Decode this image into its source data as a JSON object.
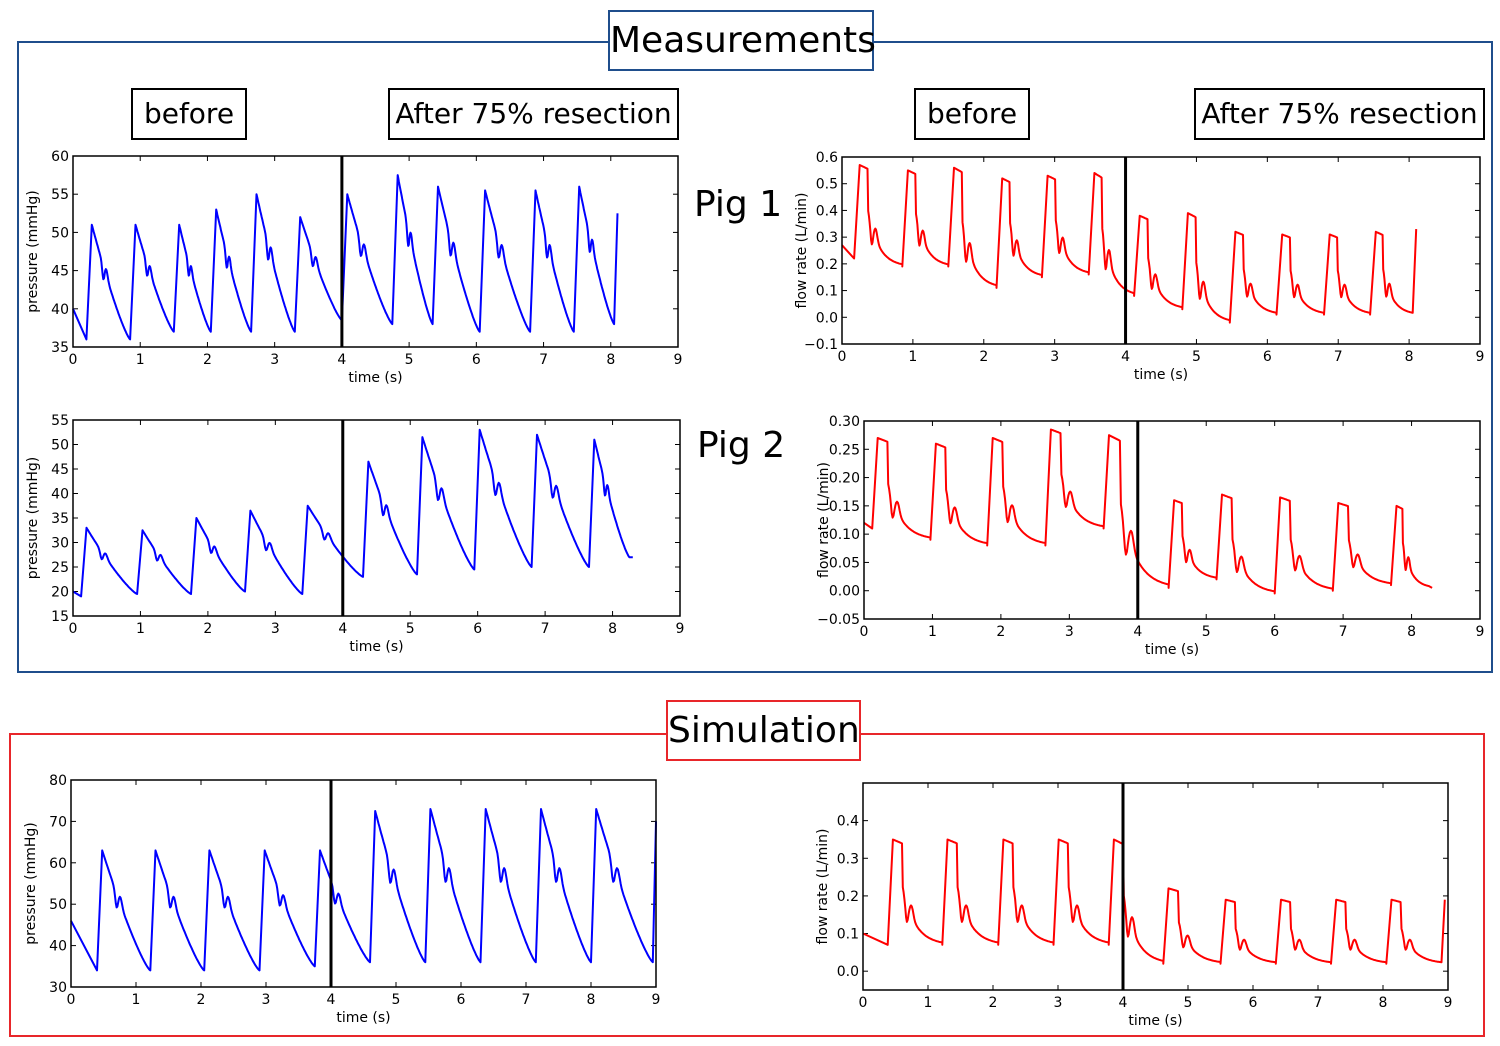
{
  "measurements": {
    "title": "Measurements",
    "color": "#1f4e8c"
  },
  "simulation": {
    "title": "Simulation",
    "color": "#e8262a"
  },
  "labels": {
    "before": "before",
    "after": "After 75% resection",
    "pig1": "Pig 1",
    "pig2": "Pig 2"
  },
  "chart_data": [
    {
      "id": "pig1-pressure",
      "type": "line",
      "xlabel": "time (s)",
      "ylabel": "pressure (mmHg)",
      "xlim": [
        0,
        9
      ],
      "ylim": [
        35,
        60
      ],
      "xticks": [
        0,
        1,
        2,
        3,
        4,
        5,
        6,
        7,
        8,
        9
      ],
      "yticks": [
        35,
        40,
        45,
        50,
        55,
        60
      ],
      "tick_labels_y": [
        "35",
        "40",
        "45",
        "50",
        "55",
        "60"
      ],
      "color": "#0000ff",
      "divider_x": 4,
      "start": [
        0,
        40
      ],
      "beats": [
        [
          0.2,
          36,
          51
        ],
        [
          0.85,
          36,
          51
        ],
        [
          1.5,
          37,
          51
        ],
        [
          2.05,
          37,
          53
        ],
        [
          2.65,
          37,
          55
        ],
        [
          3.3,
          37,
          52
        ],
        [
          4.0,
          38.5,
          55
        ],
        [
          4.75,
          38,
          57.5
        ],
        [
          5.35,
          38,
          56
        ],
        [
          6.05,
          37,
          55.5
        ],
        [
          6.8,
          37,
          55.5
        ],
        [
          7.45,
          37,
          56
        ]
      ],
      "end": [
        8.1,
        38,
        52.5
      ]
    },
    {
      "id": "pig1-flow",
      "type": "line",
      "xlabel": "time (s)",
      "ylabel": "flow rate (L/min)",
      "xlim": [
        0,
        9
      ],
      "ylim": [
        -0.1,
        0.6
      ],
      "xticks": [
        0,
        1,
        2,
        3,
        4,
        5,
        6,
        7,
        8,
        9
      ],
      "yticks": [
        -0.1,
        0,
        0.1,
        0.2,
        0.3,
        0.4,
        0.5,
        0.6
      ],
      "tick_labels_y": [
        "−0.1",
        "0.0",
        "0.1",
        "0.2",
        "0.3",
        "0.4",
        "0.5",
        "0.6"
      ],
      "color": "#ff0000",
      "divider_x": 4,
      "start": [
        0,
        0.27
      ],
      "beats": [
        [
          0.17,
          0.22,
          0.57
        ],
        [
          0.85,
          0.19,
          0.55
        ],
        [
          1.5,
          0.19,
          0.56
        ],
        [
          2.18,
          0.11,
          0.52
        ],
        [
          2.82,
          0.15,
          0.53
        ],
        [
          3.48,
          0.16,
          0.54
        ],
        [
          4.12,
          0.08,
          0.38
        ],
        [
          4.8,
          0.03,
          0.39
        ],
        [
          5.47,
          -0.02,
          0.32
        ],
        [
          6.13,
          0.01,
          0.31
        ],
        [
          6.8,
          0.01,
          0.31
        ],
        [
          7.45,
          0.01,
          0.32
        ]
      ],
      "end": [
        8.1,
        0.01,
        0.33
      ]
    },
    {
      "id": "pig2-pressure",
      "type": "line",
      "xlabel": "time (s)",
      "ylabel": "pressure (mmHg)",
      "xlim": [
        0,
        9
      ],
      "ylim": [
        15,
        55
      ],
      "xticks": [
        0,
        1,
        2,
        3,
        4,
        5,
        6,
        7,
        8,
        9
      ],
      "yticks": [
        15,
        20,
        25,
        30,
        35,
        40,
        45,
        50,
        55
      ],
      "tick_labels_y": [
        "15",
        "20",
        "25",
        "30",
        "35",
        "40",
        "45",
        "50",
        "55"
      ],
      "color": "#0000ff",
      "divider_x": 4,
      "start": [
        0,
        20
      ],
      "beats": [
        [
          0.12,
          19,
          33
        ],
        [
          0.95,
          19.5,
          32.5
        ],
        [
          1.75,
          19.5,
          35
        ],
        [
          2.55,
          20,
          36.5
        ],
        [
          3.4,
          19.5,
          37.5
        ],
        [
          4.3,
          23,
          46.5
        ],
        [
          5.1,
          23.5,
          51.5
        ],
        [
          5.95,
          24.5,
          53
        ],
        [
          6.8,
          25,
          52
        ],
        [
          7.65,
          25,
          51
        ]
      ],
      "end": [
        8.3,
        27,
        27
      ]
    },
    {
      "id": "pig2-flow",
      "type": "line",
      "xlabel": "time (s)",
      "ylabel": "flow rate (L/min)",
      "xlim": [
        0,
        9
      ],
      "ylim": [
        -0.05,
        0.3
      ],
      "xticks": [
        0,
        1,
        2,
        3,
        4,
        5,
        6,
        7,
        8,
        9
      ],
      "yticks": [
        -0.05,
        0,
        0.05,
        0.1,
        0.15,
        0.2,
        0.25,
        0.3
      ],
      "tick_labels_y": [
        "−0.05",
        "0.00",
        "0.05",
        "0.10",
        "0.15",
        "0.20",
        "0.25",
        "0.30"
      ],
      "color": "#ff0000",
      "divider_x": 4,
      "start": [
        0,
        0.12
      ],
      "beats": [
        [
          0.12,
          0.11,
          0.27
        ],
        [
          0.97,
          0.09,
          0.26
        ],
        [
          1.8,
          0.08,
          0.27
        ],
        [
          2.65,
          0.08,
          0.285
        ],
        [
          3.5,
          0.11,
          0.275
        ],
        [
          4.45,
          0.005,
          0.16
        ],
        [
          5.15,
          0.02,
          0.17
        ],
        [
          6.0,
          -0.005,
          0.165
        ],
        [
          6.85,
          0.0,
          0.155
        ],
        [
          7.7,
          0.01,
          0.15
        ]
      ],
      "end": [
        8.3,
        0.005,
        0.005
      ]
    },
    {
      "id": "sim-pressure",
      "type": "line",
      "xlabel": "time (s)",
      "ylabel": "pressure (mmHg)",
      "xlim": [
        0,
        9
      ],
      "ylim": [
        30,
        80
      ],
      "xticks": [
        0,
        1,
        2,
        3,
        4,
        5,
        6,
        7,
        8,
        9
      ],
      "yticks": [
        30,
        40,
        50,
        60,
        70,
        80
      ],
      "tick_labels_y": [
        "30",
        "40",
        "50",
        "60",
        "70",
        "80"
      ],
      "color": "#0000ff",
      "divider_x": 4,
      "start": [
        0,
        46
      ],
      "beats": [
        [
          0.4,
          34,
          63
        ],
        [
          1.22,
          34,
          63
        ],
        [
          2.05,
          34,
          63
        ],
        [
          2.9,
          34,
          63
        ],
        [
          3.75,
          35,
          63
        ],
        [
          4.6,
          36,
          72.5
        ],
        [
          5.45,
          36,
          73
        ],
        [
          6.3,
          36,
          73
        ],
        [
          7.15,
          36,
          73
        ],
        [
          8.0,
          36,
          73
        ]
      ],
      "end": [
        9.0,
        36,
        70
      ]
    },
    {
      "id": "sim-flow",
      "type": "line",
      "xlabel": "time (s)",
      "ylabel": "flow rate (L/min)",
      "xlim": [
        0,
        9
      ],
      "ylim": [
        -0.05,
        0.5
      ],
      "xticks": [
        0,
        1,
        2,
        3,
        4,
        5,
        6,
        7,
        8,
        9
      ],
      "yticks": [
        0,
        0.1,
        0.2,
        0.3,
        0.4
      ],
      "tick_labels_y": [
        "0.0",
        "0.1",
        "0.2",
        "0.3",
        "0.4"
      ],
      "color": "#ff0000",
      "divider_x": 4,
      "start": [
        0,
        0.1
      ],
      "beats": [
        [
          0.38,
          0.07,
          0.35
        ],
        [
          1.22,
          0.07,
          0.35
        ],
        [
          2.08,
          0.07,
          0.35
        ],
        [
          2.93,
          0.07,
          0.35
        ],
        [
          3.78,
          0.07,
          0.35
        ],
        [
          4.62,
          0.02,
          0.22
        ],
        [
          5.5,
          0.02,
          0.19
        ],
        [
          6.35,
          0.02,
          0.19
        ],
        [
          7.2,
          0.02,
          0.19
        ],
        [
          8.05,
          0.02,
          0.19
        ]
      ],
      "end": [
        8.95,
        0.02,
        0.19
      ]
    }
  ]
}
